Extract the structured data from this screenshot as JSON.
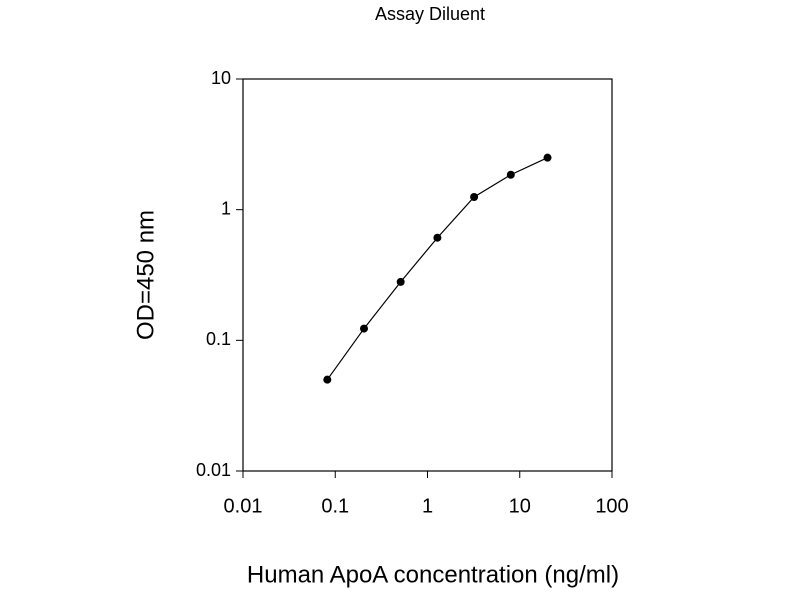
{
  "chart_data": {
    "type": "line",
    "title": "Assay Diluent",
    "x_label": "Human ApoA concentration (ng/ml)",
    "y_label": "OD=450 nm",
    "x": [
      0.082,
      0.205,
      0.512,
      1.28,
      3.2,
      8,
      20
    ],
    "series": [
      {
        "color": "#000000",
        "values": [
          0.05,
          0.123,
          0.28,
          0.61,
          1.25,
          1.85,
          2.5
        ]
      }
    ],
    "xscale": "log",
    "yscale": "log",
    "xlim": [
      0.01,
      100
    ],
    "ylim": [
      0.01,
      10
    ],
    "xticks": [
      0.01,
      0.1,
      1,
      10,
      100
    ],
    "yticks": [
      0.01,
      0.1,
      1,
      10
    ],
    "markers": true
  }
}
